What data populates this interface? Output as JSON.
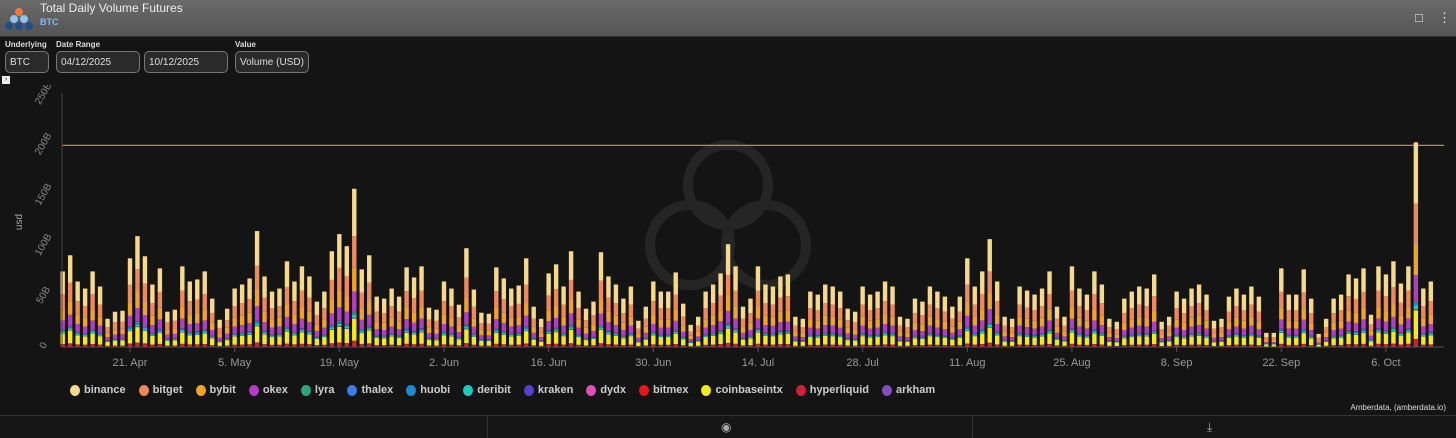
{
  "header": {
    "title": "Total Daily Volume Futures",
    "subtitle": "BTC"
  },
  "filters": {
    "underlying_label": "Underlying",
    "underlying": "BTC",
    "date_range_label": "Date Range",
    "start": "04/12/2025",
    "end": "10/12/2025",
    "value_label": "Value",
    "value": "Volume (USD)"
  },
  "credit": "Amberdata, (amberdata.io)",
  "icons": {
    "bookmark": "bookmark-icon",
    "menu": "more-vertical-icon",
    "camera": "camera-icon",
    "download": "download-icon"
  },
  "chart_data": {
    "type": "bar",
    "stacked": true,
    "title": "Total Daily Volume Futures",
    "ylabel": "usd",
    "xlabel": "",
    "ylim": [
      0,
      250
    ],
    "unit": "B",
    "yticks": [
      "0",
      "50B",
      "100B",
      "150B",
      "200B",
      "250B"
    ],
    "xticks": [
      "21. Apr",
      "5. May",
      "19. May",
      "2. Jun",
      "16. Jun",
      "30. Jun",
      "14. Jul",
      "28. Jul",
      "11. Aug",
      "25. Aug",
      "8. Sep",
      "22. Sep",
      "6. Oct"
    ],
    "start_date": "2025-04-12",
    "end_date": "2025-10-12",
    "reference_line": 200,
    "totals": [
      75,
      91,
      65,
      58,
      75,
      60,
      28,
      35,
      36,
      88,
      110,
      90,
      62,
      78,
      35,
      37,
      80,
      65,
      67,
      75,
      48,
      27,
      38,
      58,
      62,
      68,
      115,
      70,
      55,
      58,
      85,
      65,
      80,
      70,
      45,
      55,
      95,
      112,
      100,
      157,
      77,
      91,
      50,
      48,
      58,
      50,
      79,
      69,
      80,
      39,
      37,
      65,
      58,
      42,
      98,
      57,
      34,
      33,
      79,
      68,
      58,
      61,
      88,
      40,
      28,
      73,
      82,
      60,
      95,
      55,
      38,
      45,
      94,
      70,
      62,
      48,
      60,
      26,
      40,
      65,
      55,
      55,
      74,
      43,
      22,
      30,
      55,
      62,
      73,
      102,
      80,
      40,
      48,
      80,
      62,
      60,
      70,
      72,
      30,
      28,
      55,
      52,
      62,
      60,
      55,
      38,
      35,
      60,
      52,
      55,
      65,
      60,
      30,
      28,
      48,
      45,
      60,
      55,
      50,
      40,
      50,
      88,
      60,
      75,
      107,
      65,
      30,
      28,
      60,
      56,
      52,
      58,
      75,
      40,
      30,
      80,
      58,
      52,
      75,
      62,
      28,
      25,
      48,
      55,
      60,
      58,
      72,
      25,
      30,
      55,
      48,
      58,
      62,
      52,
      26,
      28,
      50,
      58,
      52,
      60,
      50,
      14,
      14,
      78,
      52,
      52,
      77,
      48,
      13,
      28,
      48,
      52,
      72,
      68,
      78,
      32,
      80,
      72,
      85,
      63,
      80,
      203,
      58,
      65
    ],
    "series": [
      {
        "name": "binance",
        "color": "#f6d98a",
        "share": 0.3
      },
      {
        "name": "bitget",
        "color": "#ee8a5a",
        "share": 0.2
      },
      {
        "name": "bybit",
        "color": "#f0a22a",
        "share": 0.15
      },
      {
        "name": "okex",
        "color": "#b13ec4",
        "share": 0.12
      },
      {
        "name": "lyra",
        "color": "#2fa37f",
        "share": 0.005
      },
      {
        "name": "thalex",
        "color": "#3a7be8",
        "share": 0.002
      },
      {
        "name": "huobi",
        "color": "#1d8ad4",
        "share": 0.01
      },
      {
        "name": "deribit",
        "color": "#1ec9c0",
        "share": 0.02
      },
      {
        "name": "kraken",
        "color": "#5a3fd0",
        "share": 0.005
      },
      {
        "name": "dydx",
        "color": "#e04fb8",
        "share": 0.005
      },
      {
        "name": "bitmex",
        "color": "#e8161a",
        "share": 0.01
      },
      {
        "name": "coinbaseintx",
        "color": "#f4e81e",
        "share": 0.14
      },
      {
        "name": "hyperliquid",
        "color": "#d0203a",
        "share": 0.03
      },
      {
        "name": "arkham",
        "color": "#7f4fc0",
        "share": 0.005
      }
    ],
    "stack_order_bottom_to_top": [
      "hyperliquid",
      "bitmex",
      "coinbaseintx",
      "kraken",
      "deribit",
      "huobi",
      "thalex",
      "lyra",
      "dydx",
      "arkham",
      "okex",
      "bybit",
      "bitget",
      "binance"
    ],
    "legend_position": "bottom"
  }
}
